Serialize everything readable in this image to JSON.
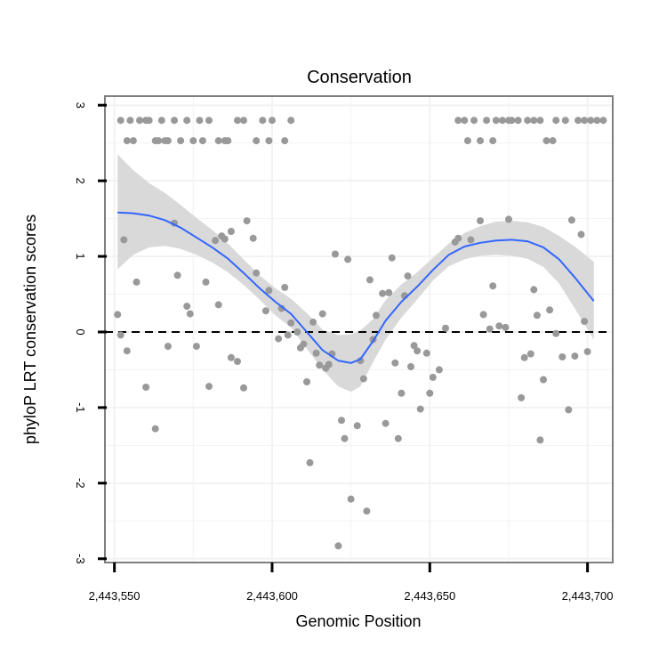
{
  "chart_data": {
    "type": "scatter",
    "title": "Conservation",
    "xlabel": "Genomic Position",
    "ylabel": "phyloP LRT conservation scores",
    "xlim": [
      2443547,
      2443708
    ],
    "ylim": [
      -3.05,
      3.12
    ],
    "xticks": [
      2443550,
      2443600,
      2443650,
      2443700
    ],
    "xtick_labels": [
      "2,443,550",
      "2,443,600",
      "2,443,650",
      "2,443,700"
    ],
    "yticks": [
      -3,
      -2,
      -1,
      0,
      1,
      2,
      3
    ],
    "ytick_labels": [
      "-3",
      "-2",
      "-1",
      "0",
      "1",
      "2",
      "3"
    ],
    "grid": true,
    "reference_line": {
      "y": 0,
      "style": "dashed",
      "color": "#000000"
    },
    "colors": {
      "points": "#999999",
      "smooth_line": "#3366ff",
      "confidence_band": "#d9d9d9",
      "panel_border": "#7f7f7f",
      "grid": "#f2f2f2"
    },
    "points": [
      [
        2443552,
        2.8
      ],
      [
        2443555,
        2.8
      ],
      [
        2443554,
        2.53
      ],
      [
        2443556,
        2.53
      ],
      [
        2443558,
        2.8
      ],
      [
        2443560,
        2.8
      ],
      [
        2443561,
        2.8
      ],
      [
        2443563,
        2.53
      ],
      [
        2443564,
        2.53
      ],
      [
        2443565,
        2.8
      ],
      [
        2443566,
        2.53
      ],
      [
        2443567,
        2.53
      ],
      [
        2443569,
        2.8
      ],
      [
        2443571,
        2.53
      ],
      [
        2443573,
        2.8
      ],
      [
        2443575,
        2.53
      ],
      [
        2443577,
        2.8
      ],
      [
        2443578,
        2.53
      ],
      [
        2443580,
        2.8
      ],
      [
        2443583,
        2.53
      ],
      [
        2443585,
        2.53
      ],
      [
        2443586,
        2.53
      ],
      [
        2443589,
        2.8
      ],
      [
        2443591,
        2.8
      ],
      [
        2443595,
        2.53
      ],
      [
        2443597,
        2.8
      ],
      [
        2443599,
        2.53
      ],
      [
        2443600,
        2.8
      ],
      [
        2443604,
        2.53
      ],
      [
        2443606,
        2.8
      ],
      [
        2443551,
        0.23
      ],
      [
        2443552,
        -0.04
      ],
      [
        2443553,
        1.22
      ],
      [
        2443554,
        -0.25
      ],
      [
        2443557,
        0.66
      ],
      [
        2443560,
        -0.73
      ],
      [
        2443563,
        -1.28
      ],
      [
        2443567,
        -0.19
      ],
      [
        2443569,
        1.44
      ],
      [
        2443570,
        0.75
      ],
      [
        2443573,
        0.34
      ],
      [
        2443574,
        0.24
      ],
      [
        2443576,
        -0.19
      ],
      [
        2443579,
        0.66
      ],
      [
        2443580,
        -0.72
      ],
      [
        2443582,
        1.21
      ],
      [
        2443583,
        0.36
      ],
      [
        2443584,
        1.27
      ],
      [
        2443585,
        1.23
      ],
      [
        2443587,
        -0.34
      ],
      [
        2443587,
        1.33
      ],
      [
        2443589,
        -0.39
      ],
      [
        2443591,
        -0.74
      ],
      [
        2443592,
        1.47
      ],
      [
        2443594,
        1.24
      ],
      [
        2443595,
        0.78
      ],
      [
        2443598,
        0.28
      ],
      [
        2443599,
        0.55
      ],
      [
        2443602,
        -0.09
      ],
      [
        2443603,
        0.31
      ],
      [
        2443604,
        0.59
      ],
      [
        2443605,
        -0.04
      ],
      [
        2443606,
        0.12
      ],
      [
        2443608,
        0.0
      ],
      [
        2443609,
        -0.21
      ],
      [
        2443610,
        -0.16
      ],
      [
        2443611,
        -0.66
      ],
      [
        2443612,
        -1.73
      ],
      [
        2443613,
        0.13
      ],
      [
        2443614,
        -0.28
      ],
      [
        2443615,
        -0.44
      ],
      [
        2443616,
        0.24
      ],
      [
        2443617,
        -0.48
      ],
      [
        2443618,
        -0.43
      ],
      [
        2443619,
        -0.29
      ],
      [
        2443620,
        1.03
      ],
      [
        2443621,
        -2.83
      ],
      [
        2443622,
        -1.17
      ],
      [
        2443623,
        -1.41
      ],
      [
        2443624,
        0.96
      ],
      [
        2443625,
        -2.21
      ],
      [
        2443627,
        -1.24
      ],
      [
        2443628,
        -0.38
      ],
      [
        2443629,
        -0.62
      ],
      [
        2443630,
        -2.37
      ],
      [
        2443631,
        0.69
      ],
      [
        2443632,
        -0.1
      ],
      [
        2443633,
        0.22
      ],
      [
        2443635,
        0.51
      ],
      [
        2443636,
        -1.21
      ],
      [
        2443637,
        0.52
      ],
      [
        2443638,
        0.98
      ],
      [
        2443639,
        -0.41
      ],
      [
        2443640,
        -1.41
      ],
      [
        2443641,
        -0.81
      ],
      [
        2443642,
        0.48
      ],
      [
        2443643,
        0.74
      ],
      [
        2443644,
        -0.46
      ],
      [
        2443645,
        -0.18
      ],
      [
        2443646,
        -0.25
      ],
      [
        2443647,
        -1.02
      ],
      [
        2443649,
        -0.28
      ],
      [
        2443650,
        -0.81
      ],
      [
        2443651,
        -0.6
      ],
      [
        2443653,
        -0.5
      ],
      [
        2443655,
        0.05
      ],
      [
        2443658,
        1.19
      ],
      [
        2443659,
        1.24
      ],
      [
        2443663,
        1.22
      ],
      [
        2443666,
        1.47
      ],
      [
        2443667,
        0.23
      ],
      [
        2443669,
        0.04
      ],
      [
        2443670,
        0.61
      ],
      [
        2443672,
        0.08
      ],
      [
        2443674,
        0.06
      ],
      [
        2443675,
        1.49
      ],
      [
        2443679,
        -0.87
      ],
      [
        2443680,
        -0.34
      ],
      [
        2443682,
        -0.29
      ],
      [
        2443683,
        0.56
      ],
      [
        2443684,
        0.22
      ],
      [
        2443685,
        -1.43
      ],
      [
        2443686,
        -0.63
      ],
      [
        2443688,
        0.29
      ],
      [
        2443690,
        -0.02
      ],
      [
        2443692,
        -0.33
      ],
      [
        2443694,
        -1.03
      ],
      [
        2443695,
        1.48
      ],
      [
        2443696,
        -0.32
      ],
      [
        2443698,
        1.29
      ],
      [
        2443699,
        0.14
      ],
      [
        2443700,
        -0.26
      ],
      [
        2443659,
        2.8
      ],
      [
        2443661,
        2.8
      ],
      [
        2443662,
        2.53
      ],
      [
        2443664,
        2.8
      ],
      [
        2443666,
        2.53
      ],
      [
        2443668,
        2.8
      ],
      [
        2443670,
        2.53
      ],
      [
        2443671,
        2.8
      ],
      [
        2443673,
        2.8
      ],
      [
        2443675,
        2.8
      ],
      [
        2443676,
        2.8
      ],
      [
        2443678,
        2.8
      ],
      [
        2443681,
        2.8
      ],
      [
        2443683,
        2.8
      ],
      [
        2443685,
        2.8
      ],
      [
        2443687,
        2.53
      ],
      [
        2443689,
        2.53
      ],
      [
        2443690,
        2.8
      ],
      [
        2443693,
        2.8
      ],
      [
        2443697,
        2.8
      ],
      [
        2443699,
        2.8
      ],
      [
        2443701,
        2.8
      ],
      [
        2443703,
        2.8
      ],
      [
        2443705,
        2.8
      ]
    ],
    "smooth": {
      "x": [
        2443551,
        2443556,
        2443561,
        2443566,
        2443571,
        2443576,
        2443581,
        2443586,
        2443591,
        2443596,
        2443601,
        2443606,
        2443611,
        2443616,
        2443621,
        2443625,
        2443628,
        2443632,
        2443636,
        2443641,
        2443646,
        2443651,
        2443656,
        2443661,
        2443666,
        2443671,
        2443676,
        2443681,
        2443686,
        2443691,
        2443696,
        2443702
      ],
      "y": [
        1.58,
        1.57,
        1.54,
        1.48,
        1.38,
        1.25,
        1.12,
        0.97,
        0.78,
        0.58,
        0.4,
        0.24,
        0.0,
        -0.24,
        -0.38,
        -0.41,
        -0.36,
        -0.12,
        0.15,
        0.4,
        0.6,
        0.82,
        1.02,
        1.13,
        1.18,
        1.21,
        1.22,
        1.2,
        1.12,
        0.96,
        0.72,
        0.41
      ],
      "lower": [
        0.83,
        1.02,
        1.12,
        1.14,
        1.1,
        1.02,
        0.92,
        0.79,
        0.62,
        0.43,
        0.22,
        0.06,
        -0.22,
        -0.5,
        -0.72,
        -0.79,
        -0.72,
        -0.4,
        -0.1,
        0.19,
        0.43,
        0.68,
        0.87,
        0.96,
        1.01,
        1.02,
        1.01,
        0.97,
        0.86,
        0.64,
        0.31,
        -0.1
      ],
      "upper": [
        2.35,
        2.14,
        1.97,
        1.84,
        1.68,
        1.51,
        1.35,
        1.17,
        0.96,
        0.75,
        0.58,
        0.44,
        0.25,
        0.03,
        -0.04,
        -0.03,
        0.02,
        0.17,
        0.42,
        0.63,
        0.79,
        0.98,
        1.17,
        1.31,
        1.4,
        1.46,
        1.47,
        1.45,
        1.39,
        1.27,
        1.13,
        0.93
      ]
    }
  }
}
